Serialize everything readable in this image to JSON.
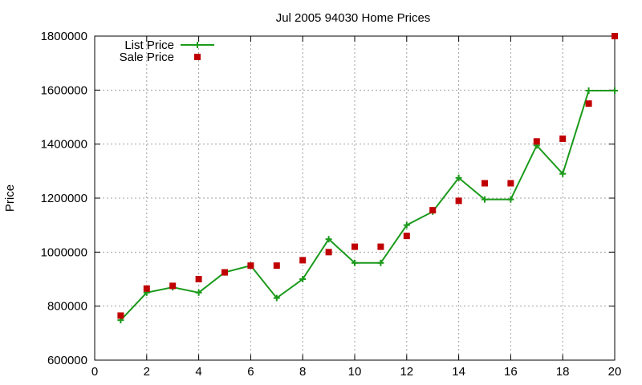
{
  "colors": {
    "list_price": "#1a9a1a",
    "sale_price": "#c00000",
    "grid": "#a0a0a0",
    "axis": "#000000"
  },
  "chart_data": {
    "type": "line",
    "title": "Jul 2005 94030 Home Prices",
    "xlabel": "",
    "ylabel": "Price",
    "xlim": [
      0,
      20
    ],
    "ylim": [
      600000,
      1800000
    ],
    "xticks": [
      0,
      2,
      4,
      6,
      8,
      10,
      12,
      14,
      16,
      18,
      20
    ],
    "yticks": [
      600000,
      800000,
      1000000,
      1200000,
      1400000,
      1600000,
      1800000
    ],
    "xtick_labels": [
      "0",
      "2",
      "4",
      "6",
      "8",
      "10",
      "12",
      "14",
      "16",
      "18",
      "20"
    ],
    "ytick_labels": [
      "600000",
      "800000",
      "1000000",
      "1200000",
      "1400000",
      "1600000",
      "1800000"
    ],
    "grid": true,
    "legend_position": "top-left",
    "series": [
      {
        "name": "List Price",
        "style": "line-plus",
        "x": [
          1,
          2,
          3,
          4,
          5,
          6,
          7,
          8,
          9,
          10,
          11,
          12,
          13,
          14,
          15,
          16,
          17,
          18,
          19,
          20
        ],
        "y": [
          748000,
          850000,
          870000,
          850000,
          925000,
          950000,
          830000,
          900000,
          1048000,
          960000,
          960000,
          1100000,
          1150000,
          1275000,
          1195000,
          1195000,
          1395000,
          1290000,
          1598000,
          1598000
        ]
      },
      {
        "name": "Sale Price",
        "style": "square-points",
        "x": [
          1,
          2,
          3,
          4,
          5,
          6,
          7,
          8,
          9,
          10,
          11,
          12,
          13,
          14,
          15,
          16,
          17,
          18,
          19,
          20
        ],
        "y": [
          765000,
          865000,
          875000,
          900000,
          925000,
          950000,
          950000,
          970000,
          1000000,
          1020000,
          1020000,
          1060000,
          1155000,
          1190000,
          1255000,
          1255000,
          1410000,
          1420000,
          1550000,
          1800000
        ]
      }
    ]
  }
}
